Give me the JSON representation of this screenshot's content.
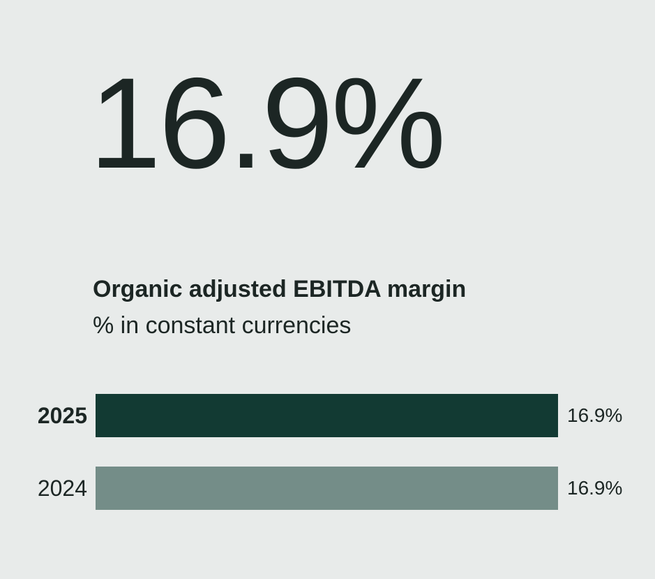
{
  "background_color": "#e8ebea",
  "text_color": "#1c2624",
  "headline": {
    "value": "16.9%"
  },
  "title": {
    "line1": "Organic adjusted EBITDA margin",
    "line2": "% in constant currencies"
  },
  "chart_data": {
    "type": "bar",
    "orientation": "horizontal",
    "title": "Organic adjusted EBITDA margin",
    "subtitle": "% in constant currencies",
    "categories": [
      "2025",
      "2024"
    ],
    "values": [
      16.9,
      16.9
    ],
    "value_labels": [
      "16.9%",
      "16.9%"
    ],
    "unit": "%",
    "xlim": [
      0,
      16.9
    ],
    "bar_colors": [
      "#123a33",
      "#748d88"
    ],
    "highlight_category": "2025",
    "grid": false,
    "legend": false
  }
}
